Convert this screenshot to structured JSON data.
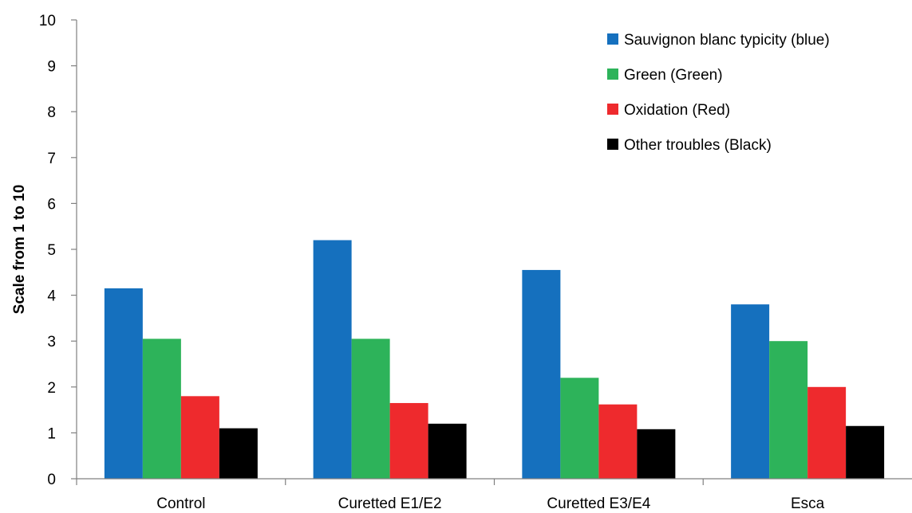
{
  "chart_data": {
    "type": "bar",
    "title": "",
    "xlabel": "",
    "ylabel": "Scale from 1 to 10",
    "ylim": [
      0,
      10
    ],
    "yticks": [
      0,
      1,
      2,
      3,
      4,
      5,
      6,
      7,
      8,
      9,
      10
    ],
    "grid": false,
    "legend_position": "top-right",
    "categories": [
      "Control",
      "Curetted E1/E2",
      "Curetted E3/E4",
      "Esca"
    ],
    "series": [
      {
        "name": "Sauvignon blanc typicity (blue)",
        "color": "#1570be",
        "values": [
          4.15,
          5.2,
          4.55,
          3.8
        ]
      },
      {
        "name": "Green (Green)",
        "color": "#2db35a",
        "values": [
          3.05,
          3.05,
          2.2,
          3.0
        ]
      },
      {
        "name": "Oxidation (Red)",
        "color": "#ee2a2d",
        "values": [
          1.8,
          1.65,
          1.62,
          2.0
        ]
      },
      {
        "name": "Other troubles (Black)",
        "color": "#000000",
        "values": [
          1.1,
          1.2,
          1.08,
          1.15
        ]
      }
    ]
  }
}
